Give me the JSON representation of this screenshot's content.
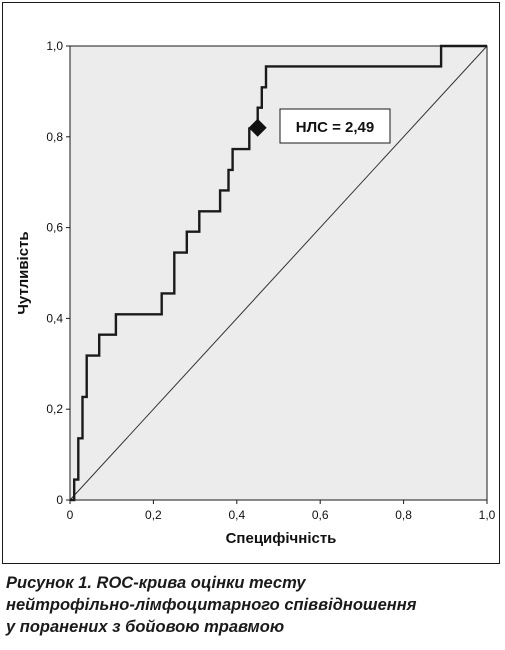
{
  "chart_data": {
    "type": "line",
    "title": "",
    "xlabel": "Специфічність",
    "ylabel": "Чутливість",
    "xlim": [
      0,
      1
    ],
    "ylim": [
      0,
      1
    ],
    "x_ticks": [
      "0",
      "0,2",
      "0,4",
      "0,6",
      "0,8",
      "1,0"
    ],
    "y_ticks": [
      "0",
      "0,2",
      "0,4",
      "0,6",
      "0,8",
      "1,0"
    ],
    "grid": false,
    "background": "#ececec",
    "series": [
      {
        "type": "step",
        "color": "#1a1a1a",
        "points": [
          [
            0,
            0
          ],
          [
            0.01,
            0
          ],
          [
            0.01,
            0.045
          ],
          [
            0.02,
            0.045
          ],
          [
            0.02,
            0.136
          ],
          [
            0.03,
            0.136
          ],
          [
            0.03,
            0.227
          ],
          [
            0.04,
            0.227
          ],
          [
            0.04,
            0.318
          ],
          [
            0.07,
            0.318
          ],
          [
            0.07,
            0.364
          ],
          [
            0.11,
            0.364
          ],
          [
            0.11,
            0.409
          ],
          [
            0.22,
            0.409
          ],
          [
            0.22,
            0.455
          ],
          [
            0.25,
            0.455
          ],
          [
            0.25,
            0.545
          ],
          [
            0.28,
            0.545
          ],
          [
            0.28,
            0.591
          ],
          [
            0.31,
            0.591
          ],
          [
            0.31,
            0.636
          ],
          [
            0.36,
            0.636
          ],
          [
            0.36,
            0.682
          ],
          [
            0.38,
            0.682
          ],
          [
            0.38,
            0.727
          ],
          [
            0.39,
            0.727
          ],
          [
            0.39,
            0.773
          ],
          [
            0.43,
            0.773
          ],
          [
            0.43,
            0.818
          ],
          [
            0.45,
            0.818
          ],
          [
            0.45,
            0.864
          ],
          [
            0.46,
            0.864
          ],
          [
            0.46,
            0.909
          ],
          [
            0.47,
            0.909
          ],
          [
            0.47,
            0.955
          ],
          [
            0.89,
            0.955
          ],
          [
            0.89,
            1.0
          ],
          [
            1.0,
            1.0
          ]
        ]
      },
      {
        "type": "reference",
        "color": "#333333",
        "points": [
          [
            0,
            0
          ],
          [
            1,
            1
          ]
        ]
      }
    ],
    "marker": {
      "x": 0.45,
      "y": 0.82,
      "shape": "diamond",
      "color": "#111111"
    },
    "annotation": {
      "text": "НЛС = 2,49"
    }
  },
  "caption": {
    "lines": [
      "Рисунок 1. ROC-крива оцінки тесту",
      "нейтрофільно-лімфоцитарного співвідношення",
      "у поранених з бойовою травмою"
    ]
  }
}
